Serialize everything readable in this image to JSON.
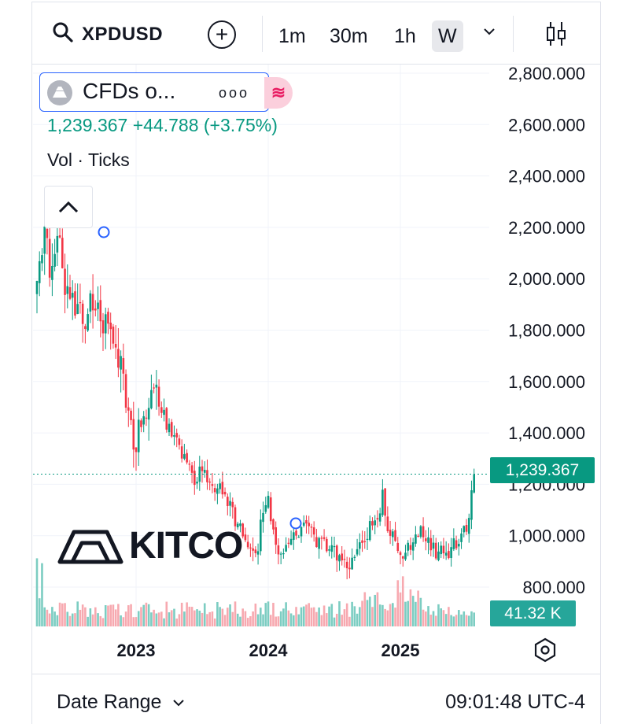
{
  "toolbar": {
    "symbol": "XPDUSD",
    "intervals": [
      "1m",
      "30m",
      "1h",
      "W"
    ],
    "active_interval": "W"
  },
  "legend": {
    "name": "CFDs o...",
    "dots": "ooo",
    "last": "1,239.367",
    "change": "+44.788",
    "change_pct": "(+3.75%)",
    "volume_label": "Vol · Ticks"
  },
  "watermark": "KITCO",
  "colors": {
    "up": "#089981",
    "down": "#f23645",
    "up_vol": "#7ccdc2",
    "down_vol": "#f7a9b0",
    "accent": "#2962ff"
  },
  "footer": {
    "date_range": "Date Range",
    "time": "09:01:48 UTC-4"
  },
  "chart_data": {
    "type": "candlestick",
    "interval": "W",
    "x_ticks": [
      "2023",
      "2024",
      "2025"
    ],
    "y_ticks": [
      "2,800.000",
      "2,600.000",
      "2,400.000",
      "2,200.000",
      "2,000.000",
      "1,800.000",
      "1,600.000",
      "1,400.000",
      "1,200.000",
      "1,000.000",
      "800.000"
    ],
    "ylim": [
      760,
      2820
    ],
    "last_price": 1239.367,
    "last_price_label": "1,239.367",
    "volume_last_label": "41.32 K",
    "close_path": [
      [
        2022.02,
        2300
      ],
      [
        2022.06,
        2100
      ],
      [
        2022.1,
        1950
      ],
      [
        2022.16,
        2050
      ],
      [
        2022.22,
        2000
      ],
      [
        2022.3,
        2150
      ],
      [
        2022.36,
        2050
      ],
      [
        2022.42,
        2100
      ],
      [
        2022.48,
        1960
      ],
      [
        2022.56,
        1920
      ],
      [
        2022.62,
        1850
      ],
      [
        2022.7,
        1900
      ],
      [
        2022.76,
        1800
      ],
      [
        2022.82,
        1760
      ],
      [
        2022.88,
        1650
      ],
      [
        2022.92,
        1560
      ],
      [
        2022.96,
        1450
      ],
      [
        2023.0,
        1380
      ],
      [
        2023.05,
        1450
      ],
      [
        2023.1,
        1480
      ],
      [
        2023.16,
        1600
      ],
      [
        2023.22,
        1450
      ],
      [
        2023.3,
        1380
      ],
      [
        2023.36,
        1300
      ],
      [
        2023.44,
        1220
      ],
      [
        2023.52,
        1250
      ],
      [
        2023.6,
        1200
      ],
      [
        2023.66,
        1150
      ],
      [
        2023.72,
        1100
      ],
      [
        2023.8,
        1020
      ],
      [
        2023.86,
        980
      ],
      [
        2023.92,
        960
      ],
      [
        2023.96,
        1100
      ],
      [
        2024.0,
        1150
      ],
      [
        2024.04,
        1020
      ],
      [
        2024.1,
        920
      ],
      [
        2024.16,
        950
      ],
      [
        2024.22,
        1020
      ],
      [
        2024.3,
        1040
      ],
      [
        2024.38,
        960
      ],
      [
        2024.46,
        960
      ],
      [
        2024.54,
        920
      ],
      [
        2024.62,
        890
      ],
      [
        2024.7,
        960
      ],
      [
        2024.78,
        1040
      ],
      [
        2024.84,
        1100
      ],
      [
        2024.86,
        1170
      ],
      [
        2024.9,
        1050
      ],
      [
        2024.96,
        960
      ],
      [
        2025.02,
        930
      ],
      [
        2025.1,
        960
      ],
      [
        2025.16,
        1010
      ],
      [
        2025.2,
        970
      ],
      [
        2025.26,
        940
      ],
      [
        2025.34,
        940
      ],
      [
        2025.42,
        960
      ],
      [
        2025.48,
        1010
      ],
      [
        2025.52,
        1080
      ],
      [
        2025.54,
        1180
      ],
      [
        2025.56,
        1239.367
      ]
    ],
    "volume_ylim": [
      0,
      90000
    ]
  }
}
